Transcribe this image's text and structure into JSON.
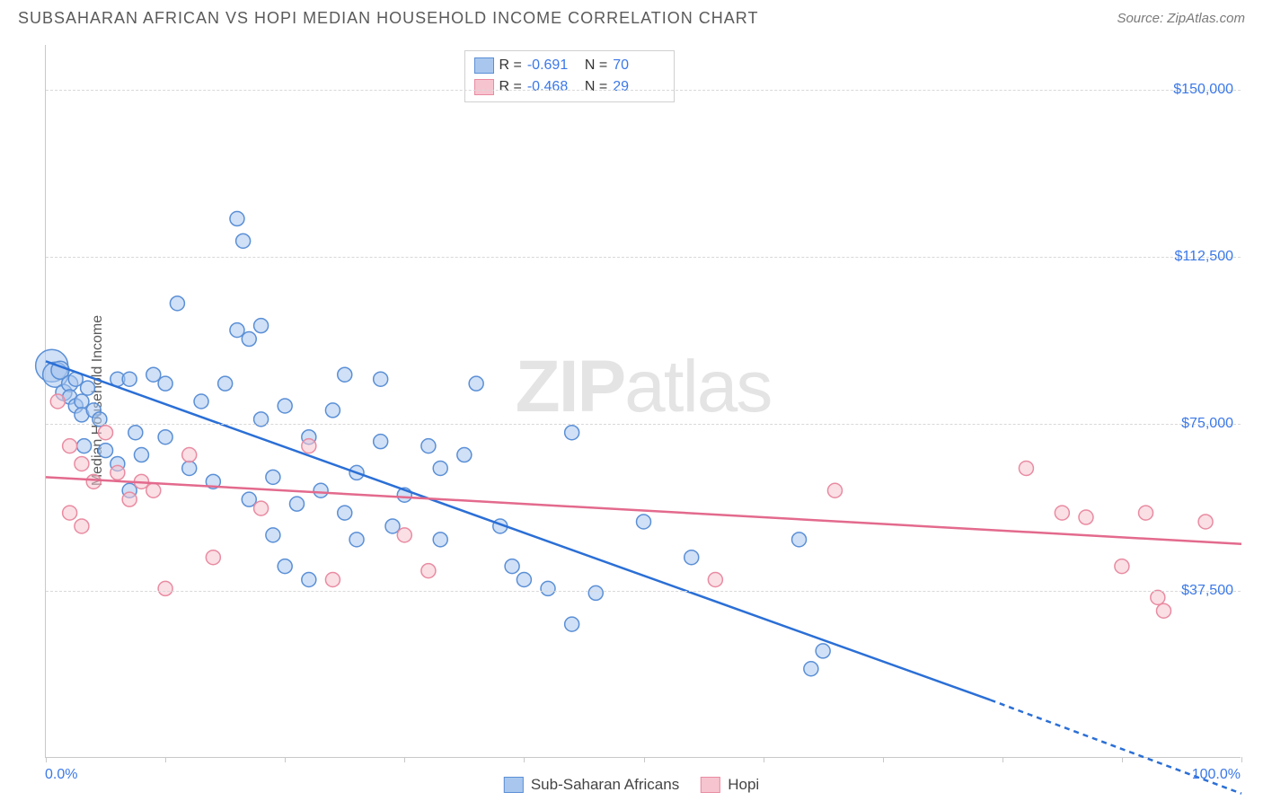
{
  "header": {
    "title": "SUBSAHARAN AFRICAN VS HOPI MEDIAN HOUSEHOLD INCOME CORRELATION CHART",
    "source": "Source: ZipAtlas.com"
  },
  "watermark": {
    "bold": "ZIP",
    "rest": "atlas"
  },
  "chart": {
    "type": "scatter",
    "ylabel": "Median Household Income",
    "xlim": [
      0,
      100
    ],
    "ylim": [
      0,
      160000
    ],
    "xtick_positions": [
      0,
      10,
      20,
      30,
      40,
      50,
      60,
      70,
      80,
      90,
      100
    ],
    "xaxis_left_label": "0.0%",
    "xaxis_right_label": "100.0%",
    "yticks": [
      {
        "v": 37500,
        "label": "$37,500"
      },
      {
        "v": 75000,
        "label": "$75,000"
      },
      {
        "v": 112500,
        "label": "$112,500"
      },
      {
        "v": 150000,
        "label": "$150,000"
      }
    ],
    "background_color": "#ffffff",
    "grid_color": "#d8d8d8",
    "axis_color": "#c8c8c8",
    "label_color": "#3b78e7",
    "series": [
      {
        "name": "Sub-Saharan Africans",
        "fill": "#a9c7ee",
        "stroke": "#5a8fd6",
        "fill_opacity": 0.55,
        "points": [
          {
            "x": 0.5,
            "y": 88000,
            "r": 18
          },
          {
            "x": 0.8,
            "y": 86000,
            "r": 14
          },
          {
            "x": 1.2,
            "y": 87000,
            "r": 10
          },
          {
            "x": 1.5,
            "y": 82000,
            "r": 9
          },
          {
            "x": 2,
            "y": 84000,
            "r": 9
          },
          {
            "x": 2,
            "y": 81000,
            "r": 8
          },
          {
            "x": 2.5,
            "y": 79000,
            "r": 8
          },
          {
            "x": 2.5,
            "y": 85000,
            "r": 8
          },
          {
            "x": 3,
            "y": 80000,
            "r": 8
          },
          {
            "x": 3,
            "y": 77000,
            "r": 8
          },
          {
            "x": 3.5,
            "y": 83000,
            "r": 8
          },
          {
            "x": 4,
            "y": 78000,
            "r": 8
          },
          {
            "x": 3.2,
            "y": 70000,
            "r": 8
          },
          {
            "x": 4.5,
            "y": 76000,
            "r": 8
          },
          {
            "x": 5,
            "y": 69000,
            "r": 8
          },
          {
            "x": 6,
            "y": 85000,
            "r": 8
          },
          {
            "x": 6,
            "y": 66000,
            "r": 8
          },
          {
            "x": 7,
            "y": 85000,
            "r": 8
          },
          {
            "x": 7.5,
            "y": 73000,
            "r": 8
          },
          {
            "x": 8,
            "y": 68000,
            "r": 8
          },
          {
            "x": 9,
            "y": 86000,
            "r": 8
          },
          {
            "x": 7,
            "y": 60000,
            "r": 8
          },
          {
            "x": 10,
            "y": 72000,
            "r": 8
          },
          {
            "x": 11,
            "y": 102000,
            "r": 8
          },
          {
            "x": 12,
            "y": 65000,
            "r": 8
          },
          {
            "x": 13,
            "y": 80000,
            "r": 8
          },
          {
            "x": 10,
            "y": 84000,
            "r": 8
          },
          {
            "x": 14,
            "y": 62000,
            "r": 8
          },
          {
            "x": 15,
            "y": 84000,
            "r": 8
          },
          {
            "x": 16,
            "y": 121000,
            "r": 8
          },
          {
            "x": 16.5,
            "y": 116000,
            "r": 8
          },
          {
            "x": 16,
            "y": 96000,
            "r": 8
          },
          {
            "x": 17,
            "y": 94000,
            "r": 8
          },
          {
            "x": 17,
            "y": 58000,
            "r": 8
          },
          {
            "x": 18,
            "y": 76000,
            "r": 8
          },
          {
            "x": 18,
            "y": 97000,
            "r": 8
          },
          {
            "x": 19,
            "y": 63000,
            "r": 8
          },
          {
            "x": 19,
            "y": 50000,
            "r": 8
          },
          {
            "x": 20,
            "y": 79000,
            "r": 8
          },
          {
            "x": 20,
            "y": 43000,
            "r": 8
          },
          {
            "x": 21,
            "y": 57000,
            "r": 8
          },
          {
            "x": 22,
            "y": 72000,
            "r": 8
          },
          {
            "x": 22,
            "y": 40000,
            "r": 8
          },
          {
            "x": 23,
            "y": 60000,
            "r": 8
          },
          {
            "x": 24,
            "y": 78000,
            "r": 8
          },
          {
            "x": 25,
            "y": 55000,
            "r": 8
          },
          {
            "x": 25,
            "y": 86000,
            "r": 8
          },
          {
            "x": 26,
            "y": 64000,
            "r": 8
          },
          {
            "x": 26,
            "y": 49000,
            "r": 8
          },
          {
            "x": 28,
            "y": 71000,
            "r": 8
          },
          {
            "x": 28,
            "y": 85000,
            "r": 8
          },
          {
            "x": 29,
            "y": 52000,
            "r": 8
          },
          {
            "x": 30,
            "y": 59000,
            "r": 8
          },
          {
            "x": 32,
            "y": 70000,
            "r": 8
          },
          {
            "x": 33,
            "y": 65000,
            "r": 8
          },
          {
            "x": 33,
            "y": 49000,
            "r": 8
          },
          {
            "x": 35,
            "y": 68000,
            "r": 8
          },
          {
            "x": 36,
            "y": 84000,
            "r": 8
          },
          {
            "x": 38,
            "y": 52000,
            "r": 8
          },
          {
            "x": 39,
            "y": 43000,
            "r": 8
          },
          {
            "x": 40,
            "y": 40000,
            "r": 8
          },
          {
            "x": 42,
            "y": 38000,
            "r": 8
          },
          {
            "x": 44,
            "y": 73000,
            "r": 8
          },
          {
            "x": 44,
            "y": 30000,
            "r": 8
          },
          {
            "x": 46,
            "y": 37000,
            "r": 8
          },
          {
            "x": 50,
            "y": 53000,
            "r": 8
          },
          {
            "x": 54,
            "y": 45000,
            "r": 8
          },
          {
            "x": 63,
            "y": 49000,
            "r": 8
          },
          {
            "x": 64,
            "y": 20000,
            "r": 8
          },
          {
            "x": 65,
            "y": 24000,
            "r": 8
          }
        ],
        "trend": {
          "x1": 0,
          "y1": 89000,
          "x2": 79,
          "y2": 13000,
          "extend_x2": 100,
          "extend_y2": -8000,
          "stroke": "#2b6fd6",
          "width": 2.5,
          "dash_extend": "6,5"
        }
      },
      {
        "name": "Hopi",
        "fill": "#f6c4cf",
        "stroke": "#e98ba1",
        "fill_opacity": 0.55,
        "points": [
          {
            "x": 1,
            "y": 80000,
            "r": 8
          },
          {
            "x": 2,
            "y": 70000,
            "r": 8
          },
          {
            "x": 3,
            "y": 66000,
            "r": 8
          },
          {
            "x": 2,
            "y": 55000,
            "r": 8
          },
          {
            "x": 3,
            "y": 52000,
            "r": 8
          },
          {
            "x": 4,
            "y": 62000,
            "r": 8
          },
          {
            "x": 5,
            "y": 73000,
            "r": 8
          },
          {
            "x": 6,
            "y": 64000,
            "r": 8
          },
          {
            "x": 7,
            "y": 58000,
            "r": 8
          },
          {
            "x": 8,
            "y": 62000,
            "r": 8
          },
          {
            "x": 9,
            "y": 60000,
            "r": 8
          },
          {
            "x": 10,
            "y": 38000,
            "r": 8
          },
          {
            "x": 12,
            "y": 68000,
            "r": 8
          },
          {
            "x": 14,
            "y": 45000,
            "r": 8
          },
          {
            "x": 18,
            "y": 56000,
            "r": 8
          },
          {
            "x": 22,
            "y": 70000,
            "r": 8
          },
          {
            "x": 24,
            "y": 40000,
            "r": 8
          },
          {
            "x": 30,
            "y": 50000,
            "r": 8
          },
          {
            "x": 32,
            "y": 42000,
            "r": 8
          },
          {
            "x": 56,
            "y": 40000,
            "r": 8
          },
          {
            "x": 66,
            "y": 60000,
            "r": 8
          },
          {
            "x": 82,
            "y": 65000,
            "r": 8
          },
          {
            "x": 85,
            "y": 55000,
            "r": 8
          },
          {
            "x": 87,
            "y": 54000,
            "r": 8
          },
          {
            "x": 90,
            "y": 43000,
            "r": 8
          },
          {
            "x": 92,
            "y": 55000,
            "r": 8
          },
          {
            "x": 93,
            "y": 36000,
            "r": 8
          },
          {
            "x": 93.5,
            "y": 33000,
            "r": 8
          },
          {
            "x": 97,
            "y": 53000,
            "r": 8
          }
        ],
        "trend": {
          "x1": 0,
          "y1": 63000,
          "x2": 100,
          "y2": 48000,
          "stroke": "#e36a8d",
          "width": 2.5
        }
      }
    ],
    "legend_top": [
      {
        "swatch_fill": "#a9c7ee",
        "swatch_stroke": "#5a8fd6",
        "r_label": "R =",
        "r_val": "-0.691",
        "n_label": "N =",
        "n_val": "70"
      },
      {
        "swatch_fill": "#f6c4cf",
        "swatch_stroke": "#e98ba1",
        "r_label": "R =",
        "r_val": "-0.468",
        "n_label": "N =",
        "n_val": "29"
      }
    ],
    "legend_bottom": [
      {
        "swatch_fill": "#a9c7ee",
        "swatch_stroke": "#5a8fd6",
        "label": "Sub-Saharan Africans"
      },
      {
        "swatch_fill": "#f6c4cf",
        "swatch_stroke": "#e98ba1",
        "label": "Hopi"
      }
    ]
  }
}
